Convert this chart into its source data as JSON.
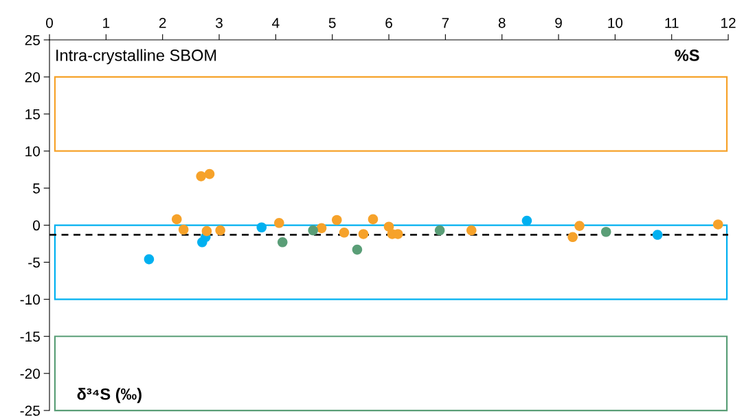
{
  "chart_data": {
    "type": "scatter",
    "marker": "circle",
    "grid": false,
    "legend": false,
    "xlim": [
      0,
      12
    ],
    "xticks": [
      0,
      1,
      2,
      3,
      4,
      5,
      6,
      7,
      8,
      9,
      10,
      11,
      12
    ],
    "ylim": [
      -25,
      25
    ],
    "yticks": [
      -25,
      -20,
      -15,
      -10,
      -5,
      0,
      5,
      10,
      15,
      20,
      25
    ],
    "series": [
      {
        "color": "#00b0f0",
        "x": [
          1.76,
          2.7,
          2.76,
          3.75,
          8.44,
          10.75
        ],
        "values": [
          -4.6,
          -2.3,
          -1.6,
          -0.3,
          0.6,
          -1.3
        ]
      },
      {
        "color": "#f6a22a",
        "x": [
          2.25,
          2.37,
          2.68,
          2.83,
          2.78,
          3.02,
          4.06,
          4.81,
          5.08,
          5.21,
          5.55,
          5.72,
          6.0,
          6.06,
          6.16,
          7.46,
          9.25,
          9.37,
          11.82
        ],
        "values": [
          0.8,
          -0.6,
          6.6,
          6.9,
          -0.8,
          -0.7,
          0.3,
          -0.4,
          0.7,
          -1.0,
          -1.2,
          0.8,
          -0.2,
          -1.2,
          -1.2,
          -0.7,
          -1.6,
          -0.1,
          0.1
        ]
      },
      {
        "color": "#5a9e77",
        "x": [
          4.12,
          4.66,
          5.44,
          6.9,
          9.84
        ],
        "values": [
          -2.3,
          -0.7,
          -3.3,
          -0.7,
          -0.9
        ]
      }
    ],
    "ref_lines": [
      {
        "axis": "y",
        "value": -1.3,
        "color": "#000000",
        "line_style": "dashed"
      }
    ],
    "bands": [
      {
        "axis": "y",
        "from": 10,
        "to": 20,
        "color": "#f6a22a"
      },
      {
        "axis": "y",
        "from": -10,
        "to": 0,
        "color": "#00b0f0"
      },
      {
        "axis": "y",
        "from": -25,
        "to": -15,
        "color": "#5a9e77"
      }
    ],
    "annotations": [
      "Intra-crystalline SBOM",
      "%S",
      "δ³⁴S (‰)"
    ]
  }
}
